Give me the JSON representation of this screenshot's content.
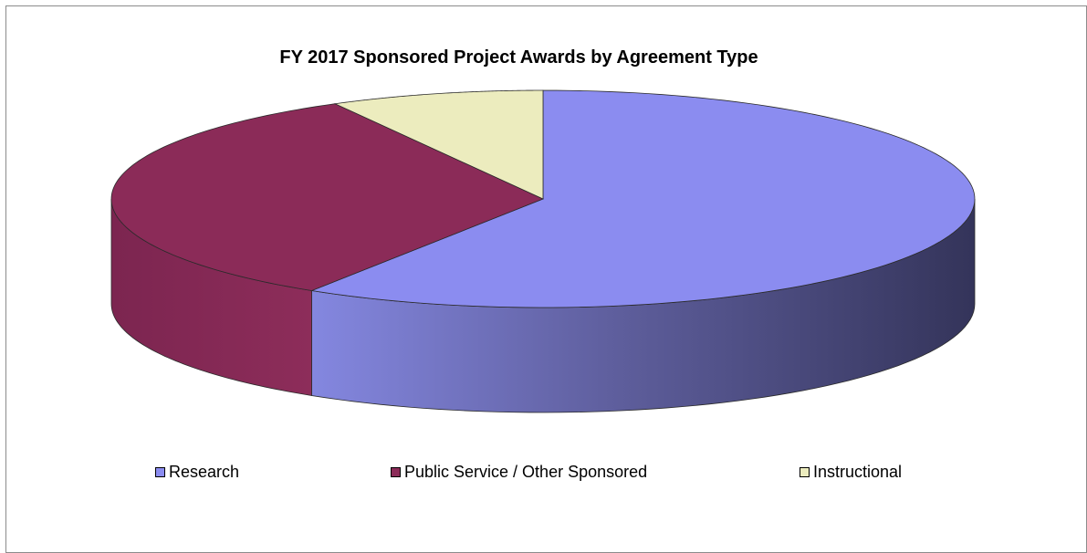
{
  "chart_data": {
    "type": "pie",
    "title": "FY 2017 Sponsored Project Awards by Agreement Type",
    "categories": [
      "Research",
      "Public Service / Other Sponsored",
      "Instructional"
    ],
    "values": [
      59,
      33,
      8
    ],
    "colors": [
      "#8b8cf0",
      "#8b2b58",
      "#ececbe"
    ],
    "side_colors": [
      "#7a7cd8",
      "#7a2550",
      "#d6d6aa"
    ],
    "legend_position": "bottom"
  }
}
